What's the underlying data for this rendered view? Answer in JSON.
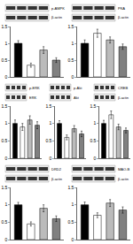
{
  "chart_data": [
    {
      "type": "bar",
      "categories": [
        null,
        null,
        null,
        null
      ],
      "values": [
        1.0,
        0.35,
        0.8,
        0.5
      ],
      "errors": [
        0.08,
        0.06,
        0.1,
        0.07
      ],
      "colors": [
        "#000000",
        "#ffffff",
        "#bbbbbb",
        "#808080"
      ],
      "ylim": [
        0,
        1.5
      ],
      "yticks": [
        0,
        0.5,
        1,
        1.5
      ],
      "tick_labels": "y",
      "annotations": [
        "p-AMPK",
        "β-actin"
      ]
    },
    {
      "type": "bar",
      "categories": [
        null,
        null,
        null,
        null
      ],
      "values": [
        1.0,
        1.3,
        1.1,
        0.9
      ],
      "errors": [
        0.1,
        0.12,
        0.09,
        0.08
      ],
      "colors": [
        "#000000",
        "#ffffff",
        "#bbbbbb",
        "#808080"
      ],
      "ylim": [
        0,
        1.5
      ],
      "yticks": [
        0,
        0.5,
        1,
        1.5
      ],
      "tick_labels": "y",
      "annotations": [
        "PKA",
        "β-actin"
      ]
    },
    {
      "type": "bar",
      "categories": [
        null,
        null,
        null,
        null
      ],
      "values": [
        1.0,
        0.9,
        1.1,
        0.95
      ],
      "errors": [
        0.1,
        0.1,
        0.12,
        0.1
      ],
      "colors": [
        "#000000",
        "#ffffff",
        "#bbbbbb",
        "#808080"
      ],
      "ylim": [
        0,
        1.5
      ],
      "yticks": [
        0,
        0.5,
        1,
        1.5
      ],
      "tick_labels": "y",
      "annotations": [
        "p-ERK",
        "ERK"
      ]
    },
    {
      "type": "bar",
      "categories": [
        null,
        null,
        null,
        null
      ],
      "values": [
        1.0,
        0.6,
        0.85,
        0.7
      ],
      "errors": [
        0.08,
        0.07,
        0.09,
        0.08
      ],
      "colors": [
        "#000000",
        "#ffffff",
        "#bbbbbb",
        "#808080"
      ],
      "ylim": [
        0,
        1.5
      ],
      "yticks": [
        0,
        0.5,
        1,
        1.5
      ],
      "tick_labels": "y",
      "annotations": [
        "p-Akt",
        "Akt"
      ]
    },
    {
      "type": "bar",
      "categories": [
        null,
        null,
        null,
        null
      ],
      "values": [
        1.0,
        1.25,
        0.9,
        0.8
      ],
      "errors": [
        0.09,
        0.11,
        0.08,
        0.07
      ],
      "colors": [
        "#000000",
        "#ffffff",
        "#bbbbbb",
        "#808080"
      ],
      "ylim": [
        0,
        1.5
      ],
      "yticks": [
        0,
        0.5,
        1,
        1.5
      ],
      "tick_labels": "y",
      "annotations": [
        "CREB",
        "β-actin"
      ]
    },
    {
      "type": "bar",
      "categories": [
        null,
        null,
        null,
        null
      ],
      "values": [
        1.0,
        0.45,
        0.9,
        0.6
      ],
      "errors": [
        0.07,
        0.06,
        0.1,
        0.08
      ],
      "colors": [
        "#000000",
        "#ffffff",
        "#bbbbbb",
        "#808080"
      ],
      "ylim": [
        0,
        1.5
      ],
      "yticks": [
        0,
        0.5,
        1,
        1.5
      ],
      "tick_labels": "y",
      "annotations": [
        "DRD2",
        "β-actin"
      ]
    },
    {
      "type": "bar",
      "categories": [
        null,
        null,
        null,
        null
      ],
      "values": [
        1.0,
        0.7,
        1.05,
        0.85
      ],
      "errors": [
        0.08,
        0.07,
        0.1,
        0.09
      ],
      "colors": [
        "#000000",
        "#ffffff",
        "#bbbbbb",
        "#808080"
      ],
      "ylim": [
        0,
        1.5
      ],
      "yticks": [
        0,
        0.5,
        1,
        1.5
      ],
      "tick_labels": "y",
      "annotations": [
        "MAO-B",
        "β-actin"
      ]
    }
  ]
}
